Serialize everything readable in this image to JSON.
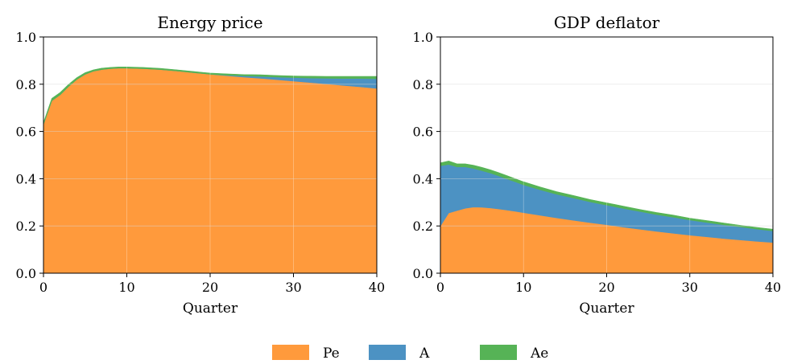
{
  "chart_data": [
    {
      "type": "area",
      "stacked": true,
      "title": "Energy price",
      "xlabel": "Quarter",
      "ylabel": "",
      "xlim": [
        0,
        40
      ],
      "ylim": [
        0,
        1.0
      ],
      "xticks": [
        0,
        10,
        20,
        30,
        40
      ],
      "yticks": [
        0.0,
        0.2,
        0.4,
        0.6,
        0.8,
        1.0
      ],
      "ytick_labels": [
        "0.0",
        "0.2",
        "0.4",
        "0.6",
        "0.8",
        "1.0"
      ],
      "grid": true,
      "x": [
        0,
        1,
        2,
        3,
        4,
        5,
        6,
        7,
        8,
        9,
        10,
        12,
        14,
        16,
        18,
        20,
        22,
        24,
        26,
        28,
        30,
        32,
        34,
        36,
        38,
        40
      ],
      "series": [
        {
          "name": "Pe",
          "color": "#ff9a3c",
          "values": [
            0.63,
            0.73,
            0.755,
            0.79,
            0.82,
            0.842,
            0.855,
            0.862,
            0.866,
            0.868,
            0.868,
            0.866,
            0.862,
            0.856,
            0.849,
            0.842,
            0.836,
            0.83,
            0.825,
            0.819,
            0.813,
            0.807,
            0.801,
            0.795,
            0.789,
            0.782
          ]
        },
        {
          "name": "A",
          "color": "#4c92c3",
          "values": [
            0.0,
            0.0,
            0.0,
            0.0,
            0.0,
            0.0,
            0.0,
            0.0,
            0.0,
            0.0,
            0.0,
            0.0,
            0.0,
            0.0,
            0.0,
            0.0,
            0.002,
            0.005,
            0.008,
            0.011,
            0.015,
            0.019,
            0.024,
            0.029,
            0.035,
            0.041
          ]
        },
        {
          "name": "Ae",
          "color": "#56b356",
          "values": [
            0.008,
            0.01,
            0.01,
            0.009,
            0.008,
            0.007,
            0.006,
            0.006,
            0.005,
            0.005,
            0.005,
            0.005,
            0.005,
            0.005,
            0.005,
            0.005,
            0.006,
            0.006,
            0.007,
            0.007,
            0.007,
            0.008,
            0.008,
            0.009,
            0.009,
            0.01
          ]
        }
      ]
    },
    {
      "type": "area",
      "stacked": true,
      "title": "GDP deflator",
      "xlabel": "Quarter",
      "ylabel": "",
      "xlim": [
        0,
        40
      ],
      "ylim": [
        0,
        1.0
      ],
      "xticks": [
        0,
        10,
        20,
        30,
        40
      ],
      "yticks": [
        0.0,
        0.2,
        0.4,
        0.6,
        0.8,
        1.0
      ],
      "ytick_labels": [
        "0.0",
        "0.2",
        "0.4",
        "0.6",
        "0.8",
        "1.0"
      ],
      "grid": true,
      "x": [
        0,
        1,
        2,
        3,
        4,
        5,
        6,
        7,
        8,
        9,
        10,
        12,
        14,
        16,
        18,
        20,
        22,
        24,
        26,
        28,
        30,
        32,
        34,
        36,
        38,
        40
      ],
      "series": [
        {
          "name": "Pe",
          "color": "#ff9a3c",
          "values": [
            0.2,
            0.255,
            0.265,
            0.275,
            0.28,
            0.279,
            0.276,
            0.272,
            0.267,
            0.262,
            0.256,
            0.245,
            0.234,
            0.224,
            0.214,
            0.205,
            0.195,
            0.186,
            0.177,
            0.169,
            0.161,
            0.154,
            0.147,
            0.141,
            0.135,
            0.13
          ]
        },
        {
          "name": "A",
          "color": "#4c92c3",
          "values": [
            0.255,
            0.205,
            0.185,
            0.175,
            0.163,
            0.155,
            0.148,
            0.14,
            0.132,
            0.125,
            0.118,
            0.108,
            0.1,
            0.094,
            0.088,
            0.083,
            0.079,
            0.075,
            0.071,
            0.068,
            0.064,
            0.061,
            0.058,
            0.055,
            0.052,
            0.049
          ]
        },
        {
          "name": "Ae",
          "color": "#56b356",
          "values": [
            0.012,
            0.015,
            0.013,
            0.013,
            0.014,
            0.014,
            0.014,
            0.014,
            0.014,
            0.013,
            0.013,
            0.012,
            0.011,
            0.011,
            0.01,
            0.01,
            0.01,
            0.009,
            0.009,
            0.009,
            0.008,
            0.008,
            0.008,
            0.007,
            0.007,
            0.007
          ]
        }
      ]
    }
  ],
  "legend": {
    "placement": "bottom-center",
    "items": [
      {
        "label": "Pe",
        "color": "#ff9a3c"
      },
      {
        "label": "A",
        "color": "#4c92c3"
      },
      {
        "label": "Ae",
        "color": "#56b356"
      }
    ]
  }
}
